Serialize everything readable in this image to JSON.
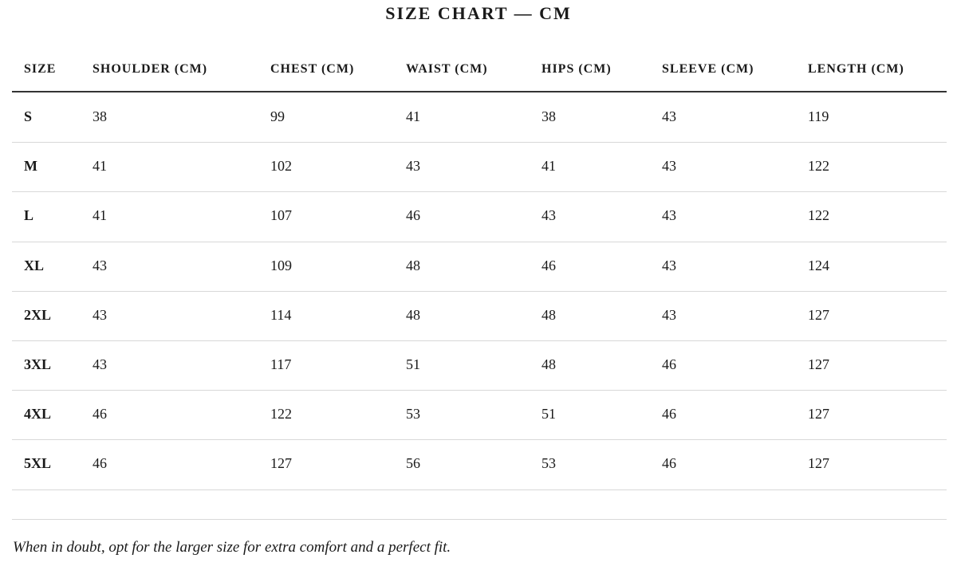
{
  "header": {
    "title": "SIZE CHART — CM"
  },
  "table": {
    "columns": [
      "SIZE",
      "SHOULDER (CM)",
      "CHEST (CM)",
      "WAIST (CM)",
      "HIPS (CM)",
      "SLEEVE (CM)",
      "LENGTH (CM)"
    ],
    "rows": [
      [
        "S",
        38,
        99,
        41,
        38,
        43,
        119
      ],
      [
        "M",
        41,
        102,
        43,
        41,
        43,
        122
      ],
      [
        "L",
        41,
        107,
        46,
        43,
        43,
        122
      ],
      [
        "XL",
        43,
        109,
        48,
        46,
        43,
        124
      ],
      [
        "2XL",
        43,
        114,
        48,
        48,
        43,
        127
      ],
      [
        "3XL",
        43,
        117,
        51,
        48,
        46,
        127
      ],
      [
        "4XL",
        46,
        122,
        53,
        51,
        46,
        127
      ],
      [
        "5XL",
        46,
        127,
        56,
        53,
        46,
        127
      ]
    ]
  },
  "footnote": "When in doubt, opt for the larger size for extra comfort and a perfect fit."
}
